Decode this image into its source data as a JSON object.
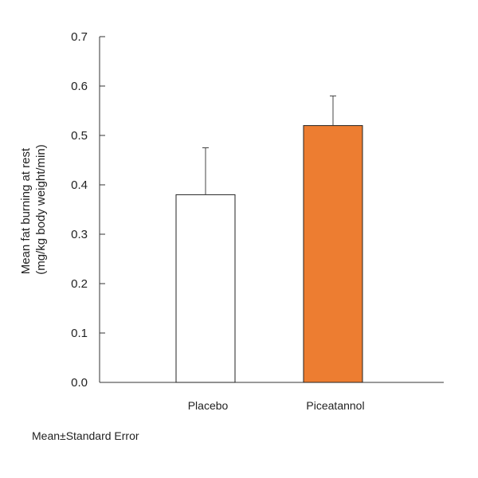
{
  "chart_data": {
    "type": "bar",
    "categories": [
      "Placebo",
      "Piceatannol"
    ],
    "values": [
      0.38,
      0.52
    ],
    "errors": [
      0.095,
      0.06
    ],
    "colors": [
      "#ffffff",
      "#ed7d31"
    ],
    "ylabel_lines": [
      "Mean fat burning at rest",
      "(mg/kg body weight/min)"
    ],
    "ylim": [
      0.0,
      0.7
    ],
    "yticks": [
      "0.0",
      "0.1",
      "0.2",
      "0.3",
      "0.4",
      "0.5",
      "0.6",
      "0.7"
    ],
    "grid": false
  },
  "footnote": "Mean±Standard Error"
}
